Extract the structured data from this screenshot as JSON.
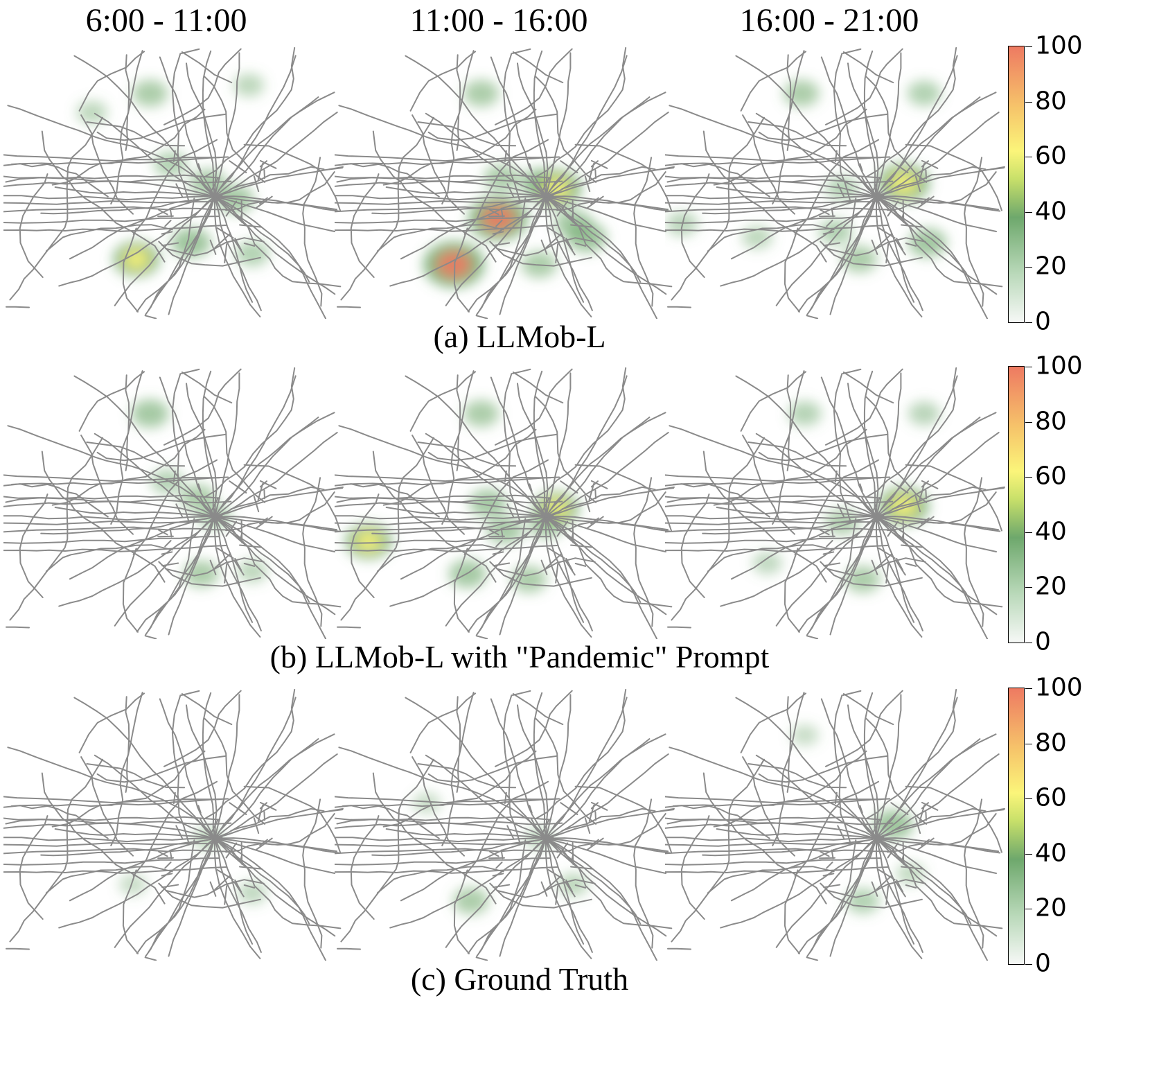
{
  "column_titles": [
    "6:00 - 11:00",
    "11:00 - 16:00",
    "16:00 - 21:00"
  ],
  "row_captions": [
    "(a) LLMob-L",
    "(b) LLMob-L with \"Pandemic\" Prompt",
    "(c) Ground Truth"
  ],
  "colorbar": {
    "ticks": [
      "100",
      "80",
      "60",
      "40",
      "20",
      "0"
    ]
  },
  "colors": {
    "road": "#8a8a8a",
    "low": "#6ea86c",
    "mid": "#fbf57a",
    "high": "#ee7a62"
  },
  "chart_data": {
    "type": "heatmap",
    "description_free": true,
    "value_range": [
      0,
      100
    ],
    "columns": [
      "6:00 - 11:00",
      "11:00 - 16:00",
      "16:00 - 21:00"
    ],
    "rows": [
      "(a) LLMob-L",
      "(b) LLMob-L with \"Pandemic\" Prompt",
      "(c) Ground Truth"
    ],
    "panels": [
      [
        [
          {
            "u": 0.43,
            "v": 0.17,
            "val": 35
          },
          {
            "u": 0.26,
            "v": 0.24,
            "val": 22
          },
          {
            "u": 0.49,
            "v": 0.43,
            "val": 30
          },
          {
            "u": 0.6,
            "v": 0.5,
            "val": 38
          },
          {
            "u": 0.68,
            "v": 0.56,
            "val": 40
          },
          {
            "u": 0.72,
            "v": 0.14,
            "val": 22
          },
          {
            "u": 0.55,
            "v": 0.72,
            "val": 45
          },
          {
            "u": 0.73,
            "v": 0.76,
            "val": 30
          },
          {
            "u": 0.39,
            "v": 0.78,
            "val": 62
          }
        ],
        [
          {
            "u": 0.43,
            "v": 0.17,
            "val": 35
          },
          {
            "u": 0.49,
            "v": 0.48,
            "val": 35
          },
          {
            "u": 0.6,
            "v": 0.5,
            "val": 42
          },
          {
            "u": 0.65,
            "v": 0.52,
            "val": 72
          },
          {
            "u": 0.48,
            "v": 0.63,
            "val": 95
          },
          {
            "u": 0.7,
            "v": 0.65,
            "val": 40
          },
          {
            "u": 0.74,
            "v": 0.7,
            "val": 45
          },
          {
            "u": 0.35,
            "v": 0.8,
            "val": 100
          },
          {
            "u": 0.6,
            "v": 0.8,
            "val": 35
          }
        ],
        [
          {
            "u": 0.4,
            "v": 0.17,
            "val": 35
          },
          {
            "u": 0.76,
            "v": 0.17,
            "val": 30
          },
          {
            "u": 0.52,
            "v": 0.52,
            "val": 28
          },
          {
            "u": 0.7,
            "v": 0.5,
            "val": 75
          },
          {
            "u": 0.05,
            "v": 0.65,
            "val": 25
          },
          {
            "u": 0.27,
            "v": 0.7,
            "val": 22
          },
          {
            "u": 0.5,
            "v": 0.68,
            "val": 30
          },
          {
            "u": 0.57,
            "v": 0.78,
            "val": 35
          },
          {
            "u": 0.77,
            "v": 0.72,
            "val": 42
          }
        ]
      ],
      [
        [
          {
            "u": 0.43,
            "v": 0.17,
            "val": 40
          },
          {
            "u": 0.48,
            "v": 0.42,
            "val": 28
          },
          {
            "u": 0.57,
            "v": 0.48,
            "val": 35
          },
          {
            "u": 0.62,
            "v": 0.55,
            "val": 30
          },
          {
            "u": 0.73,
            "v": 0.75,
            "val": 22
          },
          {
            "u": 0.58,
            "v": 0.76,
            "val": 35
          }
        ],
        [
          {
            "u": 0.43,
            "v": 0.17,
            "val": 35
          },
          {
            "u": 0.45,
            "v": 0.5,
            "val": 40
          },
          {
            "u": 0.65,
            "v": 0.52,
            "val": 60
          },
          {
            "u": 0.5,
            "v": 0.6,
            "val": 38
          },
          {
            "u": 0.62,
            "v": 0.58,
            "val": 35
          },
          {
            "u": 0.1,
            "v": 0.64,
            "val": 62
          },
          {
            "u": 0.39,
            "v": 0.76,
            "val": 40
          },
          {
            "u": 0.57,
            "v": 0.78,
            "val": 35
          }
        ],
        [
          {
            "u": 0.41,
            "v": 0.17,
            "val": 28
          },
          {
            "u": 0.76,
            "v": 0.17,
            "val": 25
          },
          {
            "u": 0.7,
            "v": 0.51,
            "val": 72
          },
          {
            "u": 0.52,
            "v": 0.57,
            "val": 32
          },
          {
            "u": 0.58,
            "v": 0.78,
            "val": 35
          },
          {
            "u": 0.3,
            "v": 0.72,
            "val": 20
          }
        ]
      ],
      [
        [
          {
            "u": 0.6,
            "v": 0.55,
            "val": 22
          },
          {
            "u": 0.73,
            "v": 0.75,
            "val": 20
          },
          {
            "u": 0.38,
            "v": 0.72,
            "val": 15
          }
        ],
        [
          {
            "u": 0.27,
            "v": 0.42,
            "val": 15
          },
          {
            "u": 0.4,
            "v": 0.78,
            "val": 35
          },
          {
            "u": 0.6,
            "v": 0.55,
            "val": 20
          },
          {
            "u": 0.7,
            "v": 0.72,
            "val": 22
          }
        ],
        [
          {
            "u": 0.67,
            "v": 0.5,
            "val": 45
          },
          {
            "u": 0.58,
            "v": 0.78,
            "val": 30
          },
          {
            "u": 0.72,
            "v": 0.68,
            "val": 18
          },
          {
            "u": 0.41,
            "v": 0.17,
            "val": 15
          }
        ]
      ]
    ]
  }
}
